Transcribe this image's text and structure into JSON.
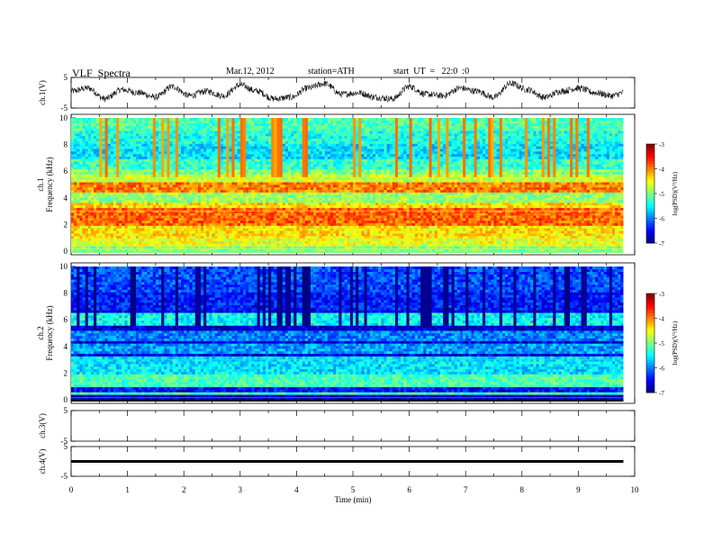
{
  "header": {
    "title": "VLF  Spectra",
    "date": "Mar.12, 2012",
    "station": "station=ATH",
    "start": "start  UT  =   22:0  :0"
  },
  "chart_data": [
    {
      "type": "line",
      "panel": "ch1-waveform",
      "ylabel": "ch.1(V)",
      "ylim": [
        -5,
        5
      ],
      "y_ticks": [
        "5",
        "-5"
      ],
      "x_range": [
        0,
        9.8
      ],
      "series": [
        {
          "x": [
            0,
            0.3,
            0.6,
            0.9,
            1.2,
            1.5,
            1.8,
            2.1,
            2.4,
            2.7,
            3.0,
            3.3,
            3.6,
            3.9,
            4.2,
            4.5,
            4.8,
            5.1,
            5.4,
            5.7,
            6.0,
            6.3,
            6.6,
            6.9,
            7.2,
            7.5,
            7.8,
            8.1,
            8.4,
            8.7,
            9.0,
            9.3,
            9.6,
            9.8
          ],
          "values": [
            0.5,
            1.5,
            -2,
            1,
            0,
            -1.5,
            2,
            -1,
            0.5,
            -1,
            2.5,
            0.5,
            -2,
            -1.5,
            1.5,
            3,
            -0.5,
            0,
            -1.5,
            -2,
            2,
            -0.5,
            -1,
            1.5,
            0.5,
            -1.5,
            3,
            1,
            -1.5,
            0.5,
            1.5,
            0,
            -1,
            0
          ]
        }
      ]
    },
    {
      "type": "heatmap",
      "panel": "ch1-spectrogram",
      "ylabel": "Frequency  (kHz)",
      "channel": "ch.1",
      "ylim": [
        0,
        10
      ],
      "y_ticks": [
        "0",
        "2",
        "4",
        "6",
        "8",
        "10"
      ],
      "bands_khz": [
        {
          "f0": 0,
          "f1": 0.3,
          "level": -5.0
        },
        {
          "f0": 0.3,
          "f1": 1.0,
          "level": -4.6
        },
        {
          "f0": 1.0,
          "f1": 2.0,
          "level": -4.4
        },
        {
          "f0": 2.0,
          "f1": 3.3,
          "level": -3.9
        },
        {
          "f0": 3.3,
          "f1": 3.7,
          "level": -4.4
        },
        {
          "f0": 3.7,
          "f1": 4.5,
          "level": -4.9
        },
        {
          "f0": 4.5,
          "f1": 5.2,
          "level": -4.0
        },
        {
          "f0": 5.2,
          "f1": 5.8,
          "level": -4.7
        },
        {
          "f0": 5.8,
          "f1": 6.2,
          "level": -5.0
        },
        {
          "f0": 6.2,
          "f1": 7.0,
          "level": -5.3
        },
        {
          "f0": 7.0,
          "f1": 8.0,
          "level": -5.6
        },
        {
          "f0": 8.0,
          "f1": 9.0,
          "level": -5.4
        },
        {
          "f0": 9.0,
          "f1": 10.0,
          "level": -5.2
        }
      ],
      "colorbar": {
        "label": "log(PSD)(V²/Hz)",
        "ticks": [
          "-3",
          "-4",
          "-5",
          "-6",
          "-7"
        ],
        "range": [
          -7,
          -3
        ]
      }
    },
    {
      "type": "heatmap",
      "panel": "ch2-spectrogram",
      "ylabel": "Frequency  (kHz)",
      "channel": "ch.2",
      "ylim": [
        0,
        10
      ],
      "y_ticks": [
        "0",
        "2",
        "4",
        "6",
        "8",
        "10"
      ],
      "bands_khz": [
        {
          "f0": 0,
          "f1": 0.3,
          "level": -6.8
        },
        {
          "f0": 0.3,
          "f1": 0.6,
          "level": -5.2
        },
        {
          "f0": 0.6,
          "f1": 1.0,
          "level": -6.5
        },
        {
          "f0": 1.0,
          "f1": 2.0,
          "level": -5.2
        },
        {
          "f0": 2.0,
          "f1": 3.2,
          "level": -5.6
        },
        {
          "f0": 3.2,
          "f1": 3.5,
          "level": -6.6
        },
        {
          "f0": 3.5,
          "f1": 4.2,
          "level": -5.9
        },
        {
          "f0": 4.2,
          "f1": 4.5,
          "level": -6.6
        },
        {
          "f0": 4.5,
          "f1": 5.2,
          "level": -6.0
        },
        {
          "f0": 5.2,
          "f1": 5.6,
          "level": -6.7
        },
        {
          "f0": 5.6,
          "f1": 6.5,
          "level": -5.5
        },
        {
          "f0": 6.5,
          "f1": 6.8,
          "level": -6.6
        },
        {
          "f0": 6.8,
          "f1": 8.0,
          "level": -6.4
        },
        {
          "f0": 8.0,
          "f1": 10.0,
          "level": -6.2
        }
      ],
      "colorbar": {
        "label": "log(PSD)(V²/Hz)",
        "ticks": [
          "-3",
          "-4",
          "-5",
          "-6",
          "-7"
        ],
        "range": [
          -7,
          -3
        ]
      }
    },
    {
      "type": "line",
      "panel": "ch3-waveform",
      "ylabel": "ch.3(V)",
      "ylim": [
        -5,
        5
      ],
      "y_ticks": [
        "5",
        "-5"
      ],
      "series": []
    },
    {
      "type": "line",
      "panel": "ch4-waveform",
      "ylabel": "ch.4(V)",
      "ylim": [
        -5,
        5
      ],
      "y_ticks": [
        "5",
        "-5"
      ],
      "series": [
        {
          "x": [
            0,
            9.8
          ],
          "values": [
            0,
            0
          ]
        }
      ]
    }
  ],
  "x_axis": {
    "label": "Time  (min)",
    "xlim": [
      0,
      10
    ],
    "ticks": [
      "0",
      "1",
      "2",
      "3",
      "4",
      "5",
      "6",
      "7",
      "8",
      "9",
      "10"
    ]
  }
}
